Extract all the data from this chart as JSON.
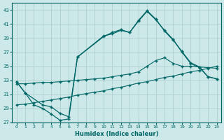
{
  "xlabel": "Humidex (Indice chaleur)",
  "bg_color": "#cce8e8",
  "grid_color": "#aacccc",
  "line_color": "#006666",
  "xlim": [
    -0.5,
    23.5
  ],
  "ylim": [
    27,
    44
  ],
  "xticks": [
    0,
    1,
    2,
    3,
    4,
    5,
    6,
    7,
    8,
    9,
    10,
    11,
    12,
    13,
    14,
    15,
    16,
    17,
    18,
    19,
    20,
    21,
    22,
    23
  ],
  "yticks": [
    27,
    29,
    31,
    33,
    35,
    37,
    39,
    41,
    43
  ],
  "line1_x": [
    0,
    1,
    2,
    3,
    4,
    5,
    6,
    7,
    10,
    11,
    12,
    13,
    14,
    15,
    16,
    17,
    18,
    19,
    20,
    21,
    22,
    23
  ],
  "line1_y": [
    32.8,
    31.2,
    29.5,
    29.0,
    28.2,
    27.3,
    27.5,
    36.3,
    39.2,
    39.8,
    40.2,
    39.8,
    41.4,
    42.8,
    41.6,
    40.1,
    38.8,
    37.0,
    35.4,
    34.8,
    33.5,
    33.2
  ],
  "line2_x": [
    0,
    1,
    3,
    4,
    5,
    6,
    7,
    10,
    11,
    12,
    13,
    14,
    15,
    16,
    17,
    18,
    19,
    20,
    21,
    22,
    23
  ],
  "line2_y": [
    32.8,
    31.2,
    29.5,
    29.2,
    28.3,
    27.8,
    36.3,
    39.3,
    39.6,
    40.1,
    39.8,
    41.5,
    42.9,
    41.7,
    40.0,
    38.7,
    37.1,
    35.5,
    34.9,
    33.5,
    33.2
  ],
  "line3_x": [
    0,
    1,
    2,
    3,
    4,
    5,
    6,
    7,
    8,
    9,
    10,
    11,
    12,
    13,
    14,
    15,
    16,
    17,
    18,
    19,
    20,
    21,
    22,
    23
  ],
  "line3_y": [
    32.5,
    32.5,
    32.6,
    32.7,
    32.7,
    32.8,
    32.9,
    33.0,
    33.1,
    33.2,
    33.3,
    33.5,
    33.7,
    33.9,
    34.2,
    35.0,
    35.8,
    36.2,
    35.4,
    35.0,
    35.0,
    34.9,
    34.8,
    34.7
  ],
  "line4_x": [
    0,
    1,
    2,
    3,
    4,
    5,
    6,
    7,
    8,
    9,
    10,
    11,
    12,
    13,
    14,
    15,
    16,
    17,
    18,
    19,
    20,
    21,
    22,
    23
  ],
  "line4_y": [
    29.5,
    29.6,
    29.8,
    30.0,
    30.2,
    30.4,
    30.6,
    30.9,
    31.1,
    31.3,
    31.5,
    31.8,
    32.0,
    32.3,
    32.6,
    32.8,
    33.1,
    33.4,
    33.6,
    33.9,
    34.2,
    34.4,
    34.7,
    35.0
  ]
}
